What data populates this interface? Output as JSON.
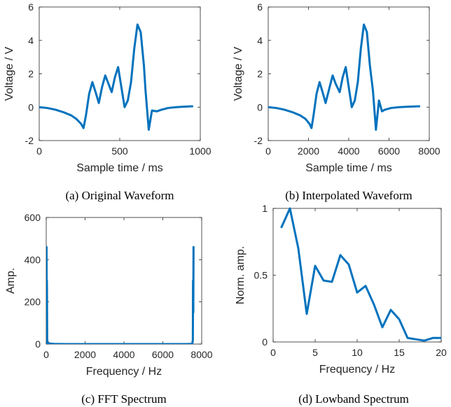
{
  "colors": {
    "line": "#0072BD",
    "axis": "#262626",
    "background": "#ffffff"
  },
  "chart_data": [
    {
      "type": "line",
      "caption": "(a) Original Waveform",
      "xlabel": "Sample time / ms",
      "ylabel": "Voltage / V",
      "xlim": [
        0,
        1000
      ],
      "ylim": [
        -2,
        6
      ],
      "xticks": [
        0,
        500,
        1000
      ],
      "yticks": [
        -2,
        0,
        2,
        4,
        6
      ],
      "series": [
        {
          "x": [
            0,
            50,
            100,
            150,
            200,
            230,
            260,
            275,
            290,
            310,
            330,
            350,
            370,
            390,
            410,
            430,
            450,
            470,
            490,
            510,
            530,
            550,
            570,
            590,
            610,
            630,
            650,
            660,
            680,
            700,
            730,
            760,
            800,
            850,
            900,
            950
          ],
          "y": [
            0.0,
            -0.05,
            -0.15,
            -0.3,
            -0.5,
            -0.7,
            -1.0,
            -1.25,
            -0.5,
            0.8,
            1.5,
            0.9,
            0.25,
            1.2,
            1.9,
            1.4,
            0.9,
            1.8,
            2.4,
            1.2,
            0.0,
            0.4,
            1.5,
            3.5,
            4.95,
            4.5,
            2.5,
            1.0,
            -1.35,
            -0.2,
            -0.25,
            -0.15,
            -0.05,
            0.0,
            0.03,
            0.05
          ]
        }
      ]
    },
    {
      "type": "line",
      "caption": "(b) Interpolated Waveform",
      "xlabel": "Sample time / ms",
      "ylabel": "Voltage / V",
      "xlim": [
        0,
        8000
      ],
      "ylim": [
        -2,
        6
      ],
      "xticks": [
        0,
        2000,
        4000,
        6000,
        8000
      ],
      "yticks": [
        -2,
        0,
        2,
        4,
        6
      ],
      "series": [
        {
          "x": [
            0,
            400,
            800,
            1200,
            1600,
            1850,
            2050,
            2150,
            2250,
            2400,
            2550,
            2700,
            2850,
            3050,
            3200,
            3350,
            3550,
            3700,
            3850,
            4000,
            4150,
            4300,
            4450,
            4600,
            4750,
            4900,
            5050,
            5200,
            5350,
            5500,
            5650,
            5800,
            6100,
            6500,
            7000,
            7500
          ],
          "y": [
            0.0,
            -0.05,
            -0.15,
            -0.3,
            -0.5,
            -0.7,
            -1.0,
            -1.25,
            -0.5,
            0.8,
            1.5,
            0.9,
            0.25,
            1.2,
            1.9,
            1.4,
            0.9,
            1.8,
            2.4,
            1.2,
            0.0,
            0.4,
            1.5,
            3.5,
            4.95,
            4.5,
            2.5,
            1.0,
            -1.35,
            0.4,
            -0.25,
            -0.15,
            -0.05,
            0.0,
            0.03,
            0.05
          ]
        }
      ]
    },
    {
      "type": "line",
      "caption": "(c) FFT Spectrum",
      "xlabel": "Frequency / Hz",
      "ylabel": "Amp.",
      "xlim": [
        0,
        8000
      ],
      "ylim": [
        0,
        600
      ],
      "xticks": [
        0,
        2000,
        4000,
        6000,
        8000
      ],
      "yticks": [
        0,
        200,
        400,
        600
      ],
      "series": [
        {
          "x": [
            0,
            15,
            25,
            35,
            50,
            75,
            150,
            400,
            1000,
            2000,
            4000,
            6000,
            7200,
            7450,
            7520,
            7545,
            7555,
            7568,
            7580
          ],
          "y": [
            0,
            460,
            150,
            300,
            20,
            8,
            3,
            1,
            0,
            0,
            0,
            0,
            0,
            1,
            3,
            20,
            300,
            150,
            460
          ]
        }
      ]
    },
    {
      "type": "line",
      "caption": "(d) Lowband Spectrum",
      "xlabel": "Frequency / Hz",
      "ylabel": "Norm. amp.",
      "xlim": [
        0,
        20
      ],
      "ylim": [
        0,
        1
      ],
      "xticks": [
        0,
        5,
        10,
        15,
        20
      ],
      "yticks": [
        0,
        0.5,
        1
      ],
      "series": [
        {
          "x": [
            1,
            2,
            3,
            4,
            5,
            6,
            7,
            8,
            9,
            10,
            11,
            12,
            13,
            14,
            15,
            16,
            17,
            18,
            19,
            20
          ],
          "y": [
            0.86,
            1.0,
            0.7,
            0.21,
            0.57,
            0.46,
            0.45,
            0.65,
            0.58,
            0.37,
            0.42,
            0.28,
            0.11,
            0.24,
            0.17,
            0.03,
            0.02,
            0.01,
            0.03,
            0.03
          ]
        }
      ]
    }
  ]
}
